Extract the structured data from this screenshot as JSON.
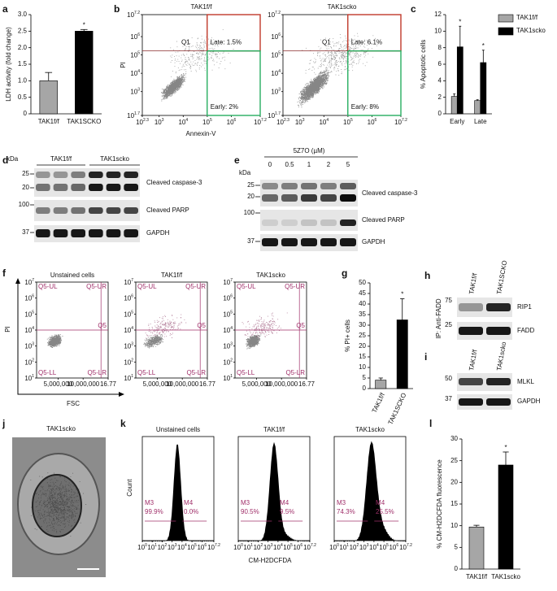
{
  "panel_letters": [
    "a",
    "b",
    "c",
    "d",
    "e",
    "f",
    "g",
    "h",
    "i",
    "j",
    "k",
    "l"
  ],
  "chart_data": [
    {
      "type": "bar",
      "y_label": "LDH activity (fold change)",
      "categories": [
        "TAK1f/f",
        "TAK1SCKO"
      ],
      "values": [
        1.0,
        2.5
      ],
      "errors": [
        0.25,
        0.05
      ],
      "colors": [
        "#a6a6a6",
        "#000000"
      ],
      "significance": [
        null,
        "*"
      ],
      "ylim": [
        0,
        3
      ],
      "yticks": [
        0,
        0.5,
        {
          "value": 1,
          "label": "1.0"
        },
        1.5,
        {
          "value": 2,
          "label": "2.0"
        },
        2.5,
        {
          "value": 3,
          "label": "3.0"
        }
      ]
    },
    {
      "type": "bar",
      "y_label": "% Apoptotic cells",
      "categories": [
        "Early",
        "Late"
      ],
      "series": [
        {
          "name": "TAK1f/f",
          "color": "#a6a6a6",
          "values": [
            2.1,
            1.6
          ],
          "errors": [
            0.3,
            0.1
          ]
        },
        {
          "name": "TAK1scko",
          "color": "#000000",
          "values": [
            8.1,
            6.2
          ],
          "errors": [
            2.5,
            1.5
          ],
          "significance": [
            "*",
            "*"
          ]
        }
      ],
      "ylim": [
        0,
        12
      ],
      "yticks": [
        0,
        2,
        4,
        6,
        8,
        10,
        12
      ],
      "legend": "upper right"
    },
    {
      "type": "bar",
      "y_label": "% PI+ cells",
      "categories": [
        "TAK1f/f",
        "TAK1SCKO"
      ],
      "values": [
        4,
        32.5
      ],
      "errors": [
        1,
        10
      ],
      "colors": [
        "#a6a6a6",
        "#000000"
      ],
      "significance": [
        null,
        "*"
      ],
      "ylim": [
        0,
        50
      ],
      "yticks": [
        0,
        5,
        10,
        15,
        20,
        25,
        30,
        35,
        40,
        45,
        50
      ]
    },
    {
      "type": "bar",
      "y_label": "% CM-H2DCFDA fluorescence",
      "categories": [
        "TAK1f/f",
        "TAK1scko"
      ],
      "values": [
        9.7,
        24
      ],
      "errors": [
        0.4,
        3
      ],
      "colors": [
        "#a6a6a6",
        "#000000"
      ],
      "significance": [
        null,
        "*"
      ],
      "ylim": [
        0,
        30
      ],
      "yticks": [
        0,
        5,
        10,
        15,
        20,
        25,
        30
      ]
    }
  ],
  "b": {
    "y_label": "PI",
    "x_label": "Annexin-V",
    "tick_base": "10",
    "y_exponents": [
      "7.2",
      "6",
      "5",
      "4",
      "3",
      "1.7"
    ],
    "x_exponents": [
      "2.3",
      "3",
      "4",
      "5",
      "6",
      "7.2"
    ],
    "plots": [
      {
        "title": "TAK1f/f",
        "quadrant": "Q1",
        "late": "Late: 1.5%",
        "early": "Early: 2%"
      },
      {
        "title": "TAK1scko",
        "quadrant": "Q1",
        "late": "Late: 6.1%",
        "early": "Early: 8%"
      }
    ]
  },
  "d": {
    "unit": "kDa",
    "groups": [
      "TAK1f/f",
      "TAK1scko"
    ],
    "markers": [
      "25",
      "20",
      "100",
      "37"
    ],
    "labels": [
      "Cleaved caspase-3",
      "Cleaved PARP",
      "GAPDH"
    ]
  },
  "e": {
    "unit": "kDa",
    "treatment": "5Z7O (µM)",
    "lanes": [
      "0",
      "0.5",
      "1",
      "2",
      "5"
    ],
    "markers": [
      "25",
      "20",
      "100",
      "37"
    ],
    "labels": [
      "Cleaved caspase-3",
      "Cleaved PARP",
      "GAPDH"
    ]
  },
  "f": {
    "y_label": "PI",
    "x_label": "FSC",
    "tick_base": "10",
    "y_exponents": [
      "7",
      "6",
      "5",
      "4",
      "3",
      "2",
      "1"
    ],
    "x_ticks": [
      "5,000,000",
      "10,000,000",
      "16.77"
    ],
    "gates": [
      "Q5-UL",
      "Q5-UR",
      "Q5",
      "Q5-LL",
      "Q5-LR"
    ],
    "titles": [
      "Unstained cells",
      "TAK1f/f",
      "TAK1scko"
    ]
  },
  "h": {
    "lanes": [
      "TAK1f/f",
      "TAK1SCKO"
    ],
    "side_label": "IP: Anti-FADD",
    "markers": [
      "75",
      "25"
    ],
    "labels": [
      "RIP1",
      "FADD"
    ]
  },
  "i": {
    "lanes": [
      "TAK1f/f",
      "TAK1scko"
    ],
    "markers": [
      "50",
      "37"
    ],
    "labels": [
      "MLKL",
      "GAPDH"
    ]
  },
  "j": {
    "title": "TAK1scko"
  },
  "k": {
    "y_label": "Count",
    "x_label": "CM-H2DCFDA",
    "tick_base": "10",
    "x_exponents": [
      "0",
      "1",
      "2",
      "3",
      "4",
      "5",
      "6",
      "7.2"
    ],
    "plots": [
      {
        "title": "Unstained cells",
        "m3": "M3",
        "m3_pct": "99.9%",
        "m4": "M4",
        "m4_pct": "0.0%"
      },
      {
        "title": "TAK1f/f",
        "m3": "M3",
        "m3_pct": "90.5%",
        "m4": "M4",
        "m4_pct": "9.5%"
      },
      {
        "title": "TAK1scko",
        "m3": "M3",
        "m3_pct": "74.3%",
        "m4": "M4",
        "m4_pct": "25.5%"
      }
    ]
  }
}
